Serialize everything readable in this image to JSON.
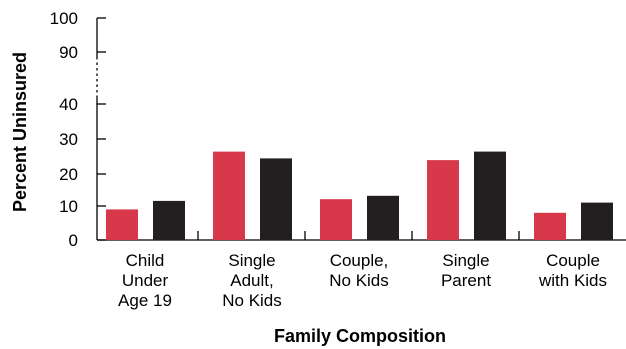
{
  "chart_data": {
    "type": "bar",
    "title": "",
    "xlabel": "Family Composition",
    "ylabel": "Percent Uninsured",
    "categories": [
      [
        "Child",
        "Under",
        "Age 19"
      ],
      [
        "Single",
        "Adult,",
        "No Kids"
      ],
      [
        "Couple,",
        "No Kids"
      ],
      [
        "Single",
        "Parent"
      ],
      [
        "Couple",
        "with Kids"
      ]
    ],
    "series": [
      {
        "color": "#d7384a",
        "values": [
          9,
          26,
          12,
          23.5,
          8
        ]
      },
      {
        "color": "#231f20",
        "values": [
          11.5,
          24,
          13,
          26,
          11
        ]
      }
    ],
    "yticks": [
      "0",
      "10",
      "20",
      "30",
      "40",
      "90",
      "100"
    ],
    "axis_break": {
      "between": [
        40,
        90
      ]
    },
    "ylim": [
      0,
      100
    ],
    "grid": false,
    "legend": "none"
  }
}
